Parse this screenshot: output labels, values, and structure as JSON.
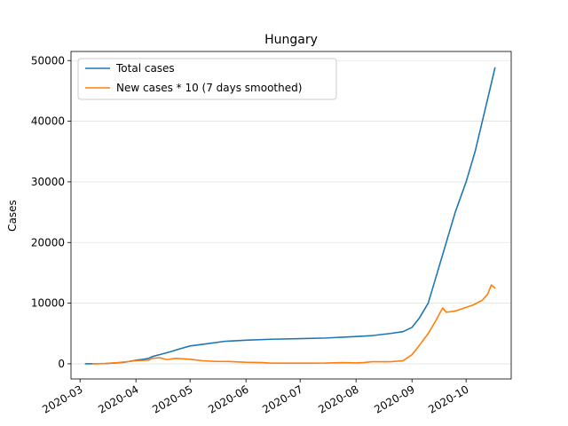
{
  "chart_data": {
    "type": "line",
    "title": "Hungary",
    "xlabel": "",
    "ylabel": "Cases",
    "x_axis_type": "date",
    "xlim": [
      "2020-02-25",
      "2020-10-26"
    ],
    "ylim": [
      -2500,
      51500
    ],
    "x_ticks": [
      "2020-03-01",
      "2020-04-01",
      "2020-05-01",
      "2020-06-01",
      "2020-07-01",
      "2020-08-01",
      "2020-09-01",
      "2020-10-01"
    ],
    "x_tick_labels": [
      "2020-03",
      "2020-04",
      "2020-05",
      "2020-06",
      "2020-07",
      "2020-08",
      "2020-09",
      "2020-10"
    ],
    "y_ticks": [
      0,
      10000,
      20000,
      30000,
      40000,
      50000
    ],
    "y_tick_labels": [
      "0",
      "10000",
      "20000",
      "30000",
      "40000",
      "50000"
    ],
    "grid": "horizontal",
    "legend_position": "upper-left",
    "series": [
      {
        "name": "Total cases",
        "color": "#1f77b4",
        "points": [
          [
            "2020-03-04",
            0
          ],
          [
            "2020-03-15",
            32
          ],
          [
            "2020-03-25",
            226
          ],
          [
            "2020-04-01",
            585
          ],
          [
            "2020-04-05",
            744
          ],
          [
            "2020-04-08",
            895
          ],
          [
            "2020-04-10",
            1190
          ],
          [
            "2020-04-15",
            1579
          ],
          [
            "2020-04-20",
            1984
          ],
          [
            "2020-04-25",
            2443
          ],
          [
            "2020-05-01",
            2942
          ],
          [
            "2020-05-10",
            3284
          ],
          [
            "2020-05-20",
            3700
          ],
          [
            "2020-06-01",
            3900
          ],
          [
            "2020-06-15",
            4050
          ],
          [
            "2020-07-01",
            4150
          ],
          [
            "2020-07-15",
            4250
          ],
          [
            "2020-08-01",
            4500
          ],
          [
            "2020-08-10",
            4650
          ],
          [
            "2020-08-20",
            5000
          ],
          [
            "2020-08-27",
            5300
          ],
          [
            "2020-09-01",
            6000
          ],
          [
            "2020-09-05",
            7500
          ],
          [
            "2020-09-10",
            10000
          ],
          [
            "2020-09-15",
            15000
          ],
          [
            "2020-09-20",
            20000
          ],
          [
            "2020-09-25",
            25000
          ],
          [
            "2020-10-01",
            30000
          ],
          [
            "2020-10-06",
            35000
          ],
          [
            "2020-10-10",
            40000
          ],
          [
            "2020-10-14",
            45000
          ],
          [
            "2020-10-17",
            48800
          ]
        ]
      },
      {
        "name": "New cases * 10 (7 days smoothed)",
        "color": "#ff7f0e",
        "points": [
          [
            "2020-03-08",
            0
          ],
          [
            "2020-03-15",
            50
          ],
          [
            "2020-03-22",
            200
          ],
          [
            "2020-04-01",
            500
          ],
          [
            "2020-04-08",
            600
          ],
          [
            "2020-04-10",
            900
          ],
          [
            "2020-04-14",
            1000
          ],
          [
            "2020-04-18",
            700
          ],
          [
            "2020-04-23",
            900
          ],
          [
            "2020-04-28",
            800
          ],
          [
            "2020-05-01",
            750
          ],
          [
            "2020-05-08",
            500
          ],
          [
            "2020-05-15",
            400
          ],
          [
            "2020-05-22",
            380
          ],
          [
            "2020-06-01",
            250
          ],
          [
            "2020-06-10",
            200
          ],
          [
            "2020-06-15",
            100
          ],
          [
            "2020-07-01",
            100
          ],
          [
            "2020-07-15",
            120
          ],
          [
            "2020-07-25",
            200
          ],
          [
            "2020-08-01",
            150
          ],
          [
            "2020-08-05",
            200
          ],
          [
            "2020-08-10",
            350
          ],
          [
            "2020-08-20",
            350
          ],
          [
            "2020-08-27",
            500
          ],
          [
            "2020-09-01",
            1500
          ],
          [
            "2020-09-05",
            3000
          ],
          [
            "2020-09-10",
            5000
          ],
          [
            "2020-09-14",
            7000
          ],
          [
            "2020-09-18",
            9200
          ],
          [
            "2020-09-20",
            8500
          ],
          [
            "2020-09-25",
            8700
          ],
          [
            "2020-09-30",
            9200
          ],
          [
            "2020-10-05",
            9700
          ],
          [
            "2020-10-10",
            10500
          ],
          [
            "2020-10-13",
            11500
          ],
          [
            "2020-10-15",
            13000
          ],
          [
            "2020-10-17",
            12500
          ]
        ]
      }
    ]
  }
}
